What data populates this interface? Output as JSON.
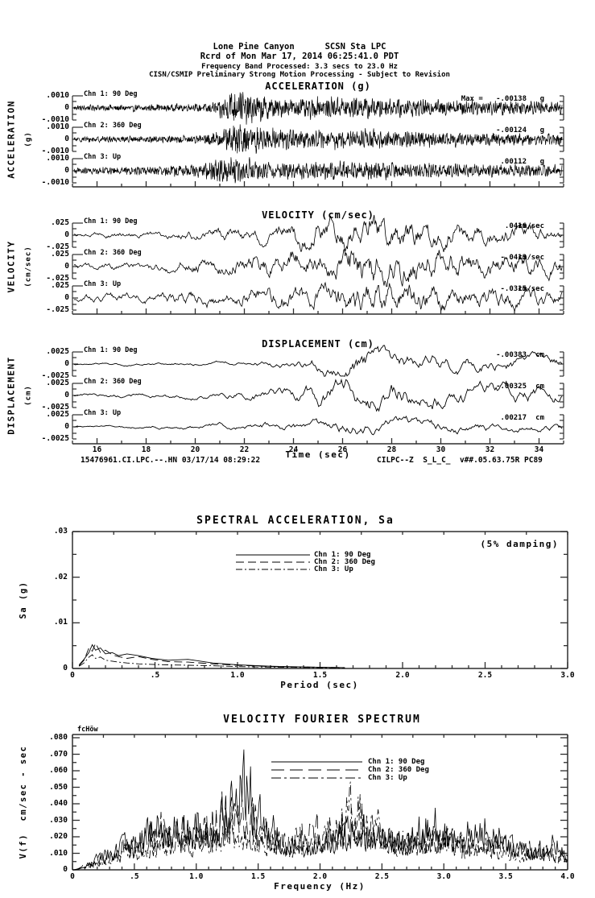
{
  "header": {
    "station_line": "Lone Pine Canyon      SCSN Sta LPC",
    "record_line": "Rcrd of Mon Mar 17, 2014 06:25:41.0 PDT",
    "band_line": "Frequency Band Processed: 3.3 secs to 23.0 Hz",
    "notice_line": "CISN/CSMIP Preliminary Strong Motion Processing - Subject to Revision"
  },
  "timeseries": {
    "xlabel": "Time (sec)",
    "xticks": [
      "16",
      "18",
      "20",
      "22",
      "24",
      "26",
      "28",
      "30",
      "32",
      "34"
    ],
    "footer_left": "15476961.CI.LPC.--.HN 03/17/14 08:29:22",
    "footer_right": "CILPC--Z  S_L_C_  v##.05.63.75R PC89",
    "panels": [
      {
        "title": "ACCELERATION (g)",
        "side_label": "ACCELERATION",
        "side_units": "(g)",
        "unit": "g",
        "yticks": [
          ".0010",
          "0",
          "-.0010"
        ],
        "channels": [
          {
            "label": "Chn 1: 90 Deg",
            "max_label": "Max =   -.00138"
          },
          {
            "label": "Chn 2: 360 Deg",
            "max_label": "-.00124"
          },
          {
            "label": "Chn 3: Up",
            "max_label": ".00112"
          }
        ]
      },
      {
        "title": "VELOCITY (cm/sec)",
        "side_label": "VELOCITY",
        "side_units": "(cm/sec)",
        "unit": "cm/sec",
        "yticks": [
          ".025",
          "0",
          "-.025"
        ],
        "channels": [
          {
            "label": "Chn 1: 90 Deg",
            "max_label": ".0416"
          },
          {
            "label": "Chn 2: 360 Deg",
            "max_label": "-.0413"
          },
          {
            "label": "Chn 3: Up",
            "max_label": "-.0315"
          }
        ]
      },
      {
        "title": "DISPLACEMENT (cm)",
        "side_label": "DISPLACEMENT",
        "side_units": "(cm)",
        "unit": "cm",
        "yticks": [
          ".0025",
          "0",
          "-.0025"
        ],
        "channels": [
          {
            "label": "Chn 1: 90 Deg",
            "max_label": "-.00383"
          },
          {
            "label": "Chn 2: 360 Deg",
            "max_label": "-.00325"
          },
          {
            "label": "Chn 3: Up",
            "max_label": ".00217"
          }
        ]
      }
    ]
  },
  "sa_plot": {
    "title": "SPECTRAL ACCELERATION, Sa",
    "damping_note": "(5% damping)",
    "ylabel": "Sa (g)",
    "xlabel": "Period (sec)",
    "yticks": [
      ".03",
      ".02",
      ".01",
      "0"
    ],
    "xticks": [
      "0",
      ".5",
      "1.0",
      "1.5",
      "2.0",
      "2.5",
      "3.0"
    ],
    "legend": [
      "Chn 1: 90 Deg",
      "Chn 2: 360 Deg",
      "Chn 3: Up"
    ]
  },
  "fourier_plot": {
    "title": "VELOCITY FOURIER SPECTRUM",
    "corner_label": "fcHöw",
    "ylabel": "V(f)  cm/sec - sec",
    "xlabel": "Frequency (Hz)",
    "yticks": [
      ".080",
      ".070",
      ".060",
      ".050",
      ".040",
      ".030",
      ".020",
      ".010",
      "0"
    ],
    "xticks": [
      "0",
      ".5",
      "1.0",
      "1.5",
      "2.0",
      "2.5",
      "3.0",
      "3.5",
      "4.0"
    ],
    "legend": [
      "Chn 1: 90 Deg",
      "Chn 2: 360 Deg",
      "Chn 3: Up"
    ]
  },
  "chart_data": [
    {
      "type": "line",
      "title": "ACCELERATION (g)",
      "xlabel": "Time (sec)",
      "xlim": [
        15,
        35
      ],
      "ylim_per_trace": [
        -0.001,
        0.001
      ],
      "series": [
        {
          "name": "Chn 1: 90 Deg",
          "peak_value": -0.00138,
          "units": "g",
          "envelope": [
            [
              15,
              0.16
            ],
            [
              20,
              0.2
            ],
            [
              20.8,
              0.35
            ],
            [
              21.5,
              1.0
            ],
            [
              22.5,
              0.75
            ],
            [
              23.5,
              0.5
            ],
            [
              25,
              0.55
            ],
            [
              26.5,
              0.6
            ],
            [
              28,
              0.5
            ],
            [
              30,
              0.45
            ],
            [
              32,
              0.42
            ],
            [
              35,
              0.35
            ]
          ]
        },
        {
          "name": "Chn 2: 360 Deg",
          "peak_value": -0.00124,
          "units": "g",
          "envelope": [
            [
              15,
              0.16
            ],
            [
              20,
              0.22
            ],
            [
              21,
              0.5
            ],
            [
              21.8,
              1.0
            ],
            [
              23,
              0.6
            ],
            [
              25,
              0.5
            ],
            [
              27,
              0.55
            ],
            [
              29,
              0.45
            ],
            [
              31,
              0.4
            ],
            [
              35,
              0.33
            ]
          ]
        },
        {
          "name": "Chn 3: Up",
          "peak_value": 0.00112,
          "units": "g",
          "envelope": [
            [
              15,
              0.2
            ],
            [
              18,
              0.3
            ],
            [
              20,
              0.45
            ],
            [
              21.3,
              1.0
            ],
            [
              22.5,
              0.6
            ],
            [
              24,
              0.55
            ],
            [
              26,
              0.6
            ],
            [
              28,
              0.55
            ],
            [
              30,
              0.5
            ],
            [
              32,
              0.45
            ],
            [
              35,
              0.4
            ]
          ]
        }
      ]
    },
    {
      "type": "line",
      "title": "VELOCITY (cm/sec)",
      "xlabel": "Time (sec)",
      "xlim": [
        15,
        35
      ],
      "ylim_per_trace": [
        -0.025,
        0.025
      ],
      "series": [
        {
          "name": "Chn 1: 90 Deg",
          "peak_value": 0.0416,
          "units": "cm/sec",
          "envelope": [
            [
              15,
              0.12
            ],
            [
              19,
              0.2
            ],
            [
              21,
              0.35
            ],
            [
              23,
              0.5
            ],
            [
              24.5,
              0.7
            ],
            [
              26,
              0.85
            ],
            [
              27.5,
              1.0
            ],
            [
              29,
              0.85
            ],
            [
              30.5,
              0.7
            ],
            [
              32,
              0.55
            ],
            [
              35,
              0.45
            ]
          ]
        },
        {
          "name": "Chn 2: 360 Deg",
          "peak_value": -0.0413,
          "units": "cm/sec",
          "envelope": [
            [
              15,
              0.12
            ],
            [
              19,
              0.22
            ],
            [
              21,
              0.4
            ],
            [
              23,
              0.55
            ],
            [
              25,
              0.75
            ],
            [
              26.5,
              1.0
            ],
            [
              28,
              0.85
            ],
            [
              30,
              0.7
            ],
            [
              32,
              0.55
            ],
            [
              35,
              0.45
            ]
          ]
        },
        {
          "name": "Chn 3: Up",
          "peak_value": -0.0315,
          "units": "cm/sec",
          "envelope": [
            [
              15,
              0.18
            ],
            [
              18,
              0.28
            ],
            [
              20,
              0.4
            ],
            [
              22,
              0.5
            ],
            [
              24,
              0.65
            ],
            [
              25.5,
              0.8
            ],
            [
              27,
              1.0
            ],
            [
              29,
              0.8
            ],
            [
              31,
              0.65
            ],
            [
              33,
              0.55
            ],
            [
              35,
              0.5
            ]
          ]
        }
      ]
    },
    {
      "type": "line",
      "title": "DISPLACEMENT (cm)",
      "xlabel": "Time (sec)",
      "xlim": [
        15,
        35
      ],
      "ylim_per_trace": [
        -0.0025,
        0.0025
      ],
      "series": [
        {
          "name": "Chn 1: 90 Deg",
          "peak_value": -0.00383,
          "units": "cm",
          "envelope": [
            [
              15,
              0.1
            ],
            [
              19,
              0.12
            ],
            [
              22,
              0.2
            ],
            [
              24,
              0.4
            ],
            [
              25.5,
              0.8
            ],
            [
              26.5,
              1.0
            ],
            [
              27.5,
              0.9
            ],
            [
              29,
              0.75
            ],
            [
              31,
              0.65
            ],
            [
              33,
              0.55
            ],
            [
              35,
              0.5
            ]
          ]
        },
        {
          "name": "Chn 2: 360 Deg",
          "peak_value": -0.00325,
          "units": "cm",
          "envelope": [
            [
              15,
              0.12
            ],
            [
              19,
              0.18
            ],
            [
              22,
              0.3
            ],
            [
              24,
              0.5
            ],
            [
              25.5,
              0.8
            ],
            [
              27,
              1.0
            ],
            [
              28.5,
              0.85
            ],
            [
              30,
              0.7
            ],
            [
              32,
              0.6
            ],
            [
              35,
              0.5
            ]
          ]
        },
        {
          "name": "Chn 3: Up",
          "peak_value": 0.00217,
          "units": "cm",
          "envelope": [
            [
              15,
              0.12
            ],
            [
              18,
              0.2
            ],
            [
              20,
              0.3
            ],
            [
              22,
              0.4
            ],
            [
              24,
              0.6
            ],
            [
              25.5,
              0.8
            ],
            [
              27,
              1.0
            ],
            [
              28.5,
              0.8
            ],
            [
              30,
              0.7
            ],
            [
              32,
              0.6
            ],
            [
              35,
              0.5
            ]
          ]
        }
      ]
    },
    {
      "type": "line",
      "title": "SPECTRAL ACCELERATION, Sa",
      "xlabel": "Period (sec)",
      "ylabel": "Sa (g)",
      "xlim": [
        0,
        3.0
      ],
      "ylim": [
        0,
        0.03
      ],
      "annotation": "(5% damping)",
      "legend_position": "upper-center",
      "grid": false,
      "x": [
        0.04,
        0.07,
        0.1,
        0.12,
        0.14,
        0.17,
        0.2,
        0.24,
        0.28,
        0.33,
        0.4,
        0.48,
        0.58,
        0.7,
        0.85,
        1.0,
        1.2,
        1.45,
        1.65
      ],
      "series": [
        {
          "name": "Chn 1: 90 Deg",
          "style": "solid",
          "y": [
            0.0008,
            0.002,
            0.0035,
            0.0052,
            0.004,
            0.0045,
            0.0032,
            0.0035,
            0.0028,
            0.0032,
            0.0028,
            0.0022,
            0.0018,
            0.002,
            0.0012,
            0.0008,
            0.0005,
            0.0003,
            0.0002
          ]
        },
        {
          "name": "Chn 2: 360 Deg",
          "style": "dashed",
          "y": [
            0.0006,
            0.0018,
            0.0045,
            0.0038,
            0.0055,
            0.0035,
            0.004,
            0.003,
            0.0026,
            0.0022,
            0.0026,
            0.002,
            0.0015,
            0.0014,
            0.001,
            0.0007,
            0.0004,
            0.0003,
            0.0002
          ]
        },
        {
          "name": "Chn 3: Up",
          "style": "dash-dot",
          "y": [
            0.0005,
            0.0012,
            0.0025,
            0.003,
            0.0022,
            0.0025,
            0.0018,
            0.0016,
            0.0014,
            0.0012,
            0.001,
            0.0009,
            0.0008,
            0.0007,
            0.0006,
            0.0004,
            0.0003,
            0.0002,
            0.0001
          ]
        }
      ]
    },
    {
      "type": "line",
      "title": "VELOCITY FOURIER SPECTRUM",
      "xlabel": "Frequency (Hz)",
      "ylabel": "V(f) cm/sec - sec",
      "xlim": [
        0,
        4.0
      ],
      "ylim": [
        0,
        0.08
      ],
      "legend_position": "upper-center",
      "grid": false,
      "series": [
        {
          "name": "Chn 1: 90 Deg",
          "style": "solid",
          "envelope": [
            [
              0,
              0
            ],
            [
              0.15,
              0.004
            ],
            [
              0.3,
              0.012
            ],
            [
              0.5,
              0.018
            ],
            [
              0.7,
              0.03
            ],
            [
              0.85,
              0.025
            ],
            [
              1.0,
              0.032
            ],
            [
              1.15,
              0.025
            ],
            [
              1.3,
              0.05
            ],
            [
              1.4,
              0.063
            ],
            [
              1.5,
              0.035
            ],
            [
              1.7,
              0.018
            ],
            [
              1.9,
              0.015
            ],
            [
              2.1,
              0.02
            ],
            [
              2.3,
              0.028
            ],
            [
              2.5,
              0.022
            ],
            [
              2.7,
              0.02
            ],
            [
              2.9,
              0.03
            ],
            [
              3.1,
              0.025
            ],
            [
              3.3,
              0.032
            ],
            [
              3.5,
              0.02
            ],
            [
              3.7,
              0.012
            ],
            [
              3.9,
              0.018
            ],
            [
              4.0,
              0.01
            ]
          ]
        },
        {
          "name": "Chn 2: 360 Deg",
          "style": "dashed",
          "envelope": [
            [
              0,
              0
            ],
            [
              0.2,
              0.006
            ],
            [
              0.4,
              0.015
            ],
            [
              0.6,
              0.025
            ],
            [
              0.8,
              0.03
            ],
            [
              1.0,
              0.025
            ],
            [
              1.2,
              0.035
            ],
            [
              1.35,
              0.04
            ],
            [
              1.5,
              0.03
            ],
            [
              1.7,
              0.02
            ],
            [
              2.0,
              0.025
            ],
            [
              2.2,
              0.03
            ],
            [
              2.4,
              0.025
            ],
            [
              2.6,
              0.018
            ],
            [
              2.8,
              0.022
            ],
            [
              3.0,
              0.02
            ],
            [
              3.2,
              0.015
            ],
            [
              3.5,
              0.018
            ],
            [
              3.8,
              0.012
            ],
            [
              4.0,
              0.008
            ]
          ]
        },
        {
          "name": "Chn 3: Up",
          "style": "dash-dot",
          "envelope": [
            [
              0,
              0
            ],
            [
              0.2,
              0.004
            ],
            [
              0.4,
              0.01
            ],
            [
              0.6,
              0.015
            ],
            [
              0.8,
              0.02
            ],
            [
              1.0,
              0.018
            ],
            [
              1.2,
              0.022
            ],
            [
              1.4,
              0.025
            ],
            [
              1.6,
              0.018
            ],
            [
              1.8,
              0.015
            ],
            [
              2.0,
              0.02
            ],
            [
              2.2,
              0.045
            ],
            [
              2.3,
              0.048
            ],
            [
              2.4,
              0.03
            ],
            [
              2.6,
              0.02
            ],
            [
              2.8,
              0.018
            ],
            [
              3.0,
              0.022
            ],
            [
              3.2,
              0.018
            ],
            [
              3.4,
              0.015
            ],
            [
              3.6,
              0.01
            ],
            [
              3.8,
              0.012
            ],
            [
              4.0,
              0.008
            ]
          ]
        }
      ]
    }
  ]
}
